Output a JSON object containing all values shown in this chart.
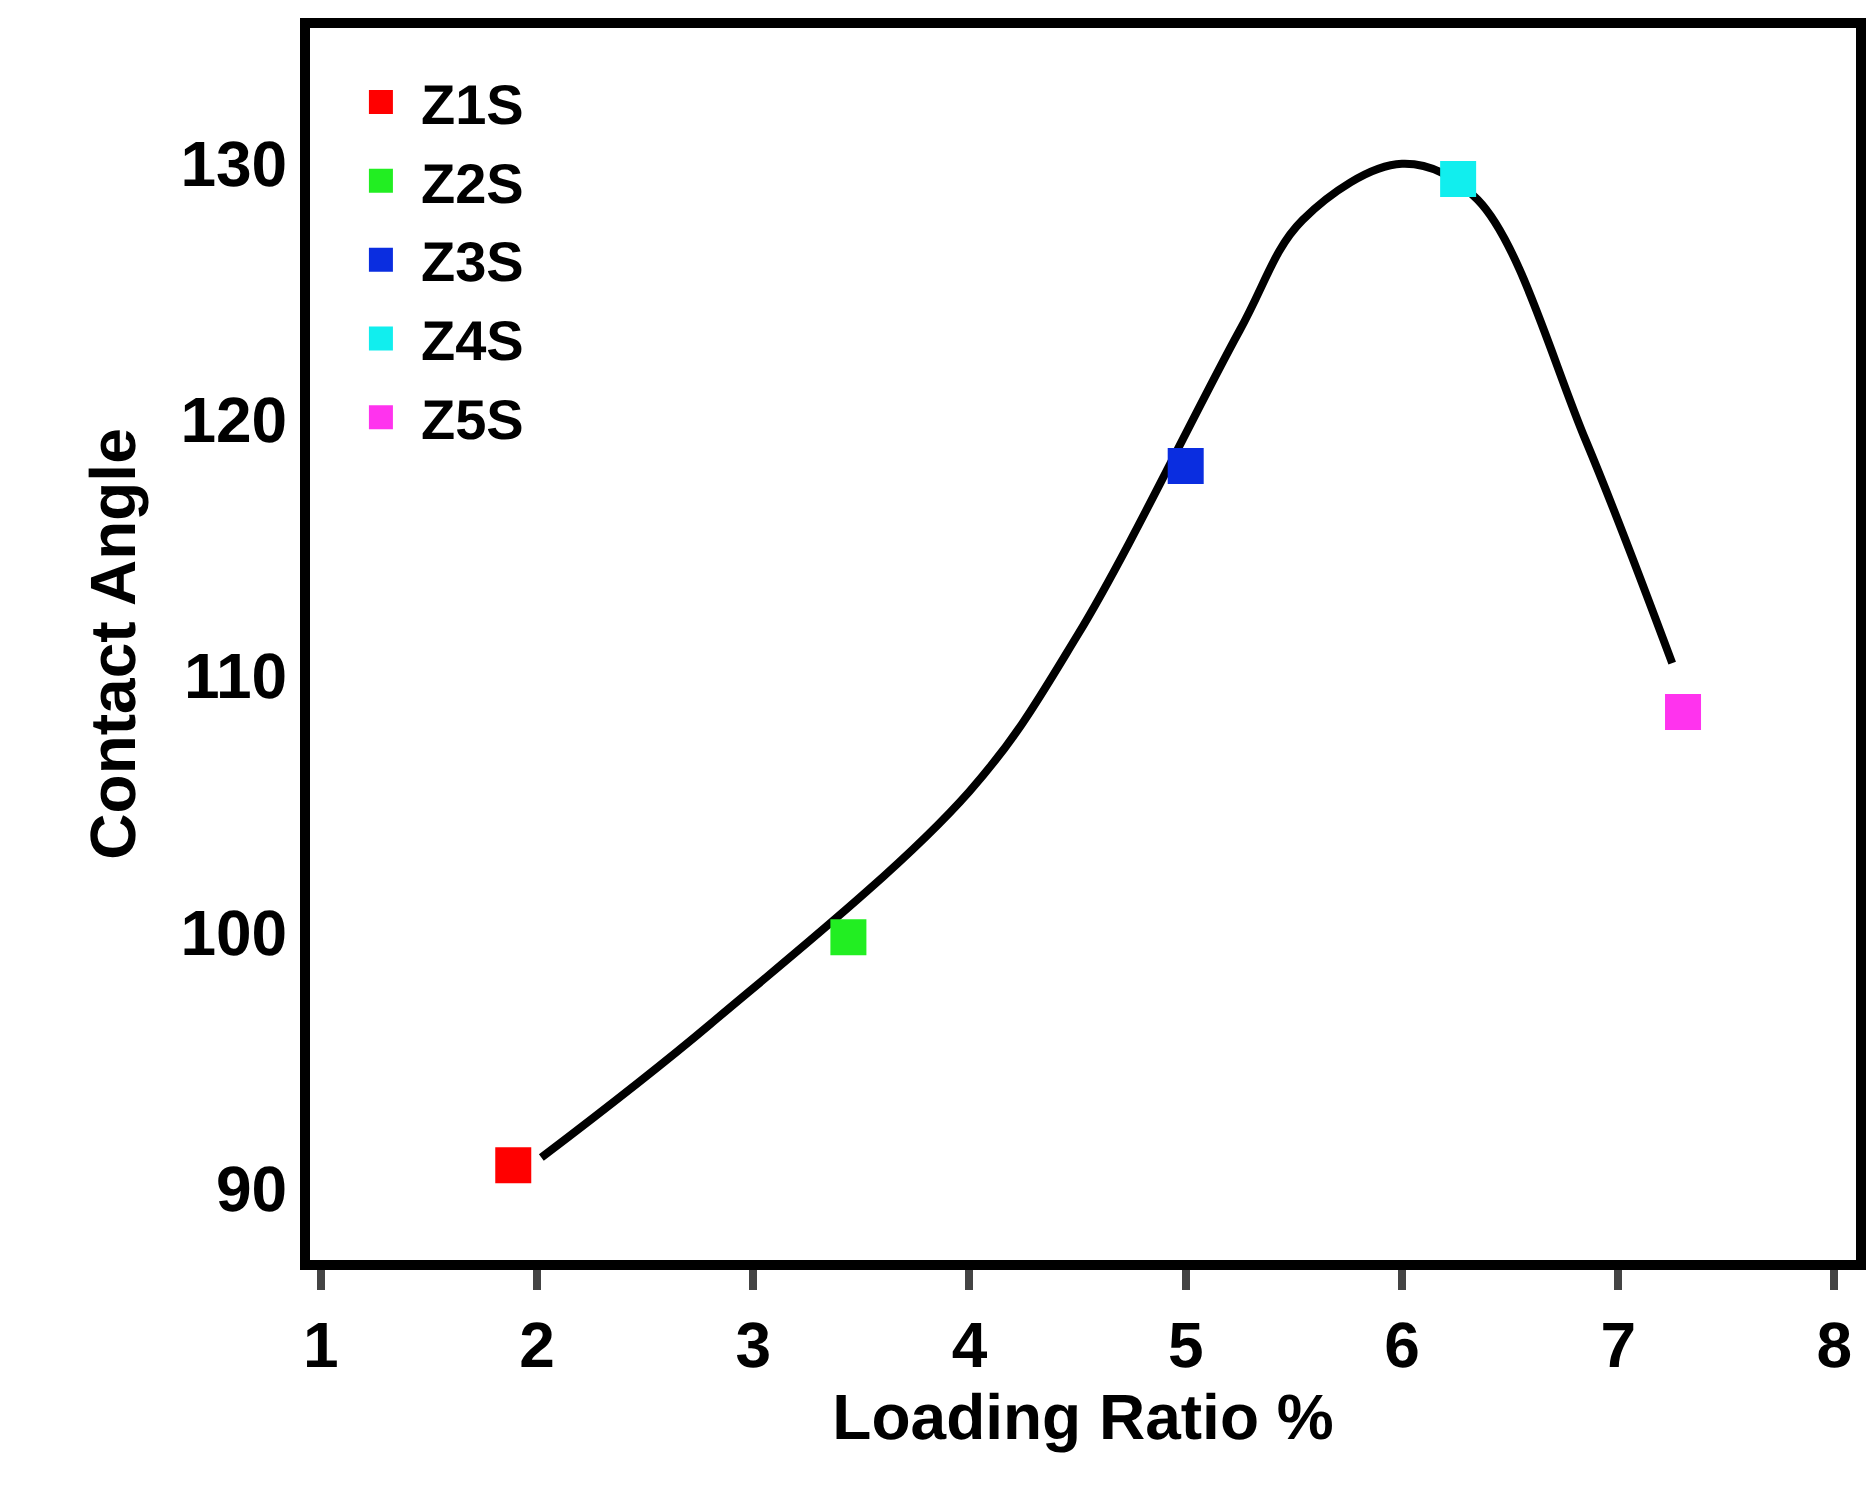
{
  "chart_data": {
    "type": "scatter",
    "xlabel": "Loading Ratio %",
    "ylabel": "Contact Angle",
    "xlim": [
      0.95,
      8.1
    ],
    "xticks": [
      1,
      2,
      3,
      4,
      5,
      6,
      7,
      8
    ],
    "ylim": [
      87.2,
      135.3
    ],
    "yticks": [
      90,
      100,
      110,
      120,
      130
    ],
    "grid": false,
    "legend": "top left",
    "marker": "square",
    "series": [
      {
        "type": "line",
        "color": "#000000",
        "marker": "none",
        "line_style": "solid",
        "x": [
          2.02,
          2.8,
          4.0,
          4.5,
          5.25,
          5.54,
          6.0,
          6.35,
          6.85,
          7.25
        ],
        "values": [
          91.2,
          96.4,
          105.5,
          111.6,
          123.5,
          127.8,
          130.0,
          128.6,
          119.2,
          110.5
        ]
      },
      {
        "name": "Z1S",
        "color": "#ff0000",
        "x": [
          1.89
        ],
        "values": [
          90.9
        ]
      },
      {
        "name": "Z2S",
        "color": "#22ee22",
        "x": [
          3.44
        ],
        "values": [
          99.8
        ]
      },
      {
        "name": "Z3S",
        "color": "#0a2de0",
        "x": [
          5.0
        ],
        "values": [
          118.2
        ]
      },
      {
        "name": "Z4S",
        "color": "#11eeee",
        "x": [
          6.26
        ],
        "values": [
          129.4
        ]
      },
      {
        "name": "Z5S",
        "color": "#ff33ee",
        "x": [
          7.3
        ],
        "values": [
          108.6
        ]
      }
    ]
  }
}
